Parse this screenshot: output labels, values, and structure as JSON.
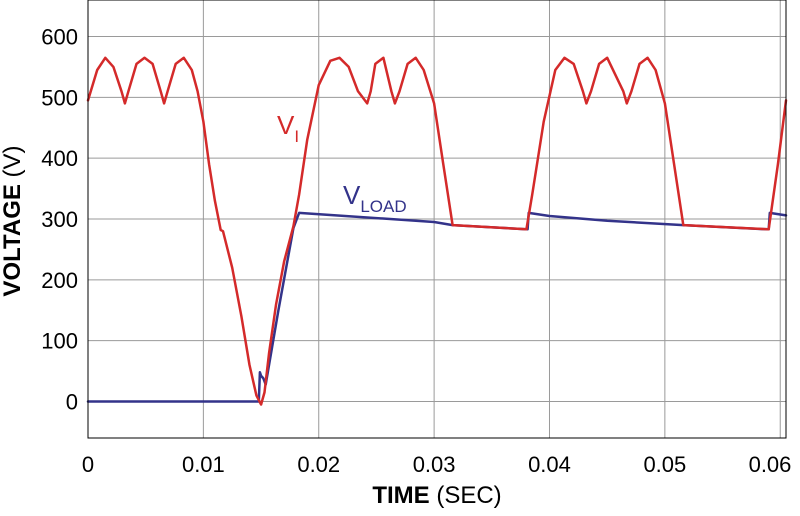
{
  "chart_data": {
    "type": "line",
    "title": "",
    "xlabel": {
      "bold": "TIME",
      "rest": " (SEC)"
    },
    "ylabel": {
      "bold": "VOLTAGE",
      "rest": " (V)"
    },
    "xlim": [
      0,
      0.0605
    ],
    "ylim": [
      -60,
      660
    ],
    "x_ticks": [
      {
        "value": 0,
        "label": "0"
      },
      {
        "value": 0.01,
        "label": "0.01"
      },
      {
        "value": 0.02,
        "label": "0.02"
      },
      {
        "value": 0.03,
        "label": "0.03"
      },
      {
        "value": 0.04,
        "label": "0.04"
      },
      {
        "value": 0.05,
        "label": "0.05"
      },
      {
        "value": 0.06,
        "label": "0.06"
      }
    ],
    "y_ticks": [
      {
        "value": 0,
        "label": "0"
      },
      {
        "value": 100,
        "label": "100"
      },
      {
        "value": 200,
        "label": "200"
      },
      {
        "value": 300,
        "label": "300"
      },
      {
        "value": 400,
        "label": "400"
      },
      {
        "value": 500,
        "label": "500"
      },
      {
        "value": 600,
        "label": "600"
      }
    ],
    "grid": true,
    "series": [
      {
        "name": "VI",
        "label_main": "V",
        "label_sub": "I",
        "color": "#d42a2a",
        "x": [
          0,
          0.0008,
          0.0015,
          0.0022,
          0.0029,
          0.0032,
          0.0035,
          0.0042,
          0.0049,
          0.0056,
          0.0063,
          0.0066,
          0.0069,
          0.0076,
          0.0083,
          0.009,
          0.0095,
          0.01,
          0.0105,
          0.011,
          0.0115,
          0.0117,
          0.0125,
          0.0133,
          0.014,
          0.0146,
          0.015,
          0.0153,
          0.0157,
          0.0163,
          0.017,
          0.0178,
          0.0183,
          0.019,
          0.02,
          0.021,
          0.0218,
          0.0226,
          0.0234,
          0.0242,
          0.0245,
          0.0249,
          0.0256,
          0.0263,
          0.0266,
          0.027,
          0.0277,
          0.0284,
          0.0291,
          0.03,
          0.0308,
          0.0316,
          0.038,
          0.0385,
          0.0395,
          0.0405,
          0.0413,
          0.0421,
          0.0429,
          0.0432,
          0.0436,
          0.0443,
          0.045,
          0.0464,
          0.0467,
          0.0471,
          0.0478,
          0.0485,
          0.0492,
          0.05,
          0.0508,
          0.0516,
          0.059,
          0.0598,
          0.0605
        ],
        "y": [
          495,
          545,
          565,
          550,
          510,
          490,
          510,
          555,
          565,
          555,
          510,
          490,
          510,
          555,
          565,
          545,
          510,
          460,
          390,
          330,
          282,
          280,
          220,
          140,
          60,
          10,
          -5,
          15,
          80,
          160,
          230,
          288,
          340,
          430,
          520,
          560,
          565,
          550,
          510,
          490,
          510,
          555,
          565,
          510,
          490,
          510,
          555,
          565,
          545,
          490,
          390,
          290,
          283,
          340,
          460,
          545,
          565,
          555,
          510,
          490,
          510,
          555,
          565,
          510,
          490,
          510,
          555,
          565,
          545,
          490,
          390,
          290,
          283,
          390,
          495
        ]
      },
      {
        "name": "VLOAD",
        "label_main": "V",
        "label_sub": "LOAD",
        "color": "#33338a",
        "x": [
          0,
          0.0148,
          0.0149,
          0.015,
          0.0152,
          0.0154,
          0.0165,
          0.0178,
          0.0183,
          0.03,
          0.0316,
          0.038,
          0.0381,
          0.0382,
          0.04,
          0.045,
          0.0516,
          0.0589,
          0.059,
          0.0591,
          0.0605
        ],
        "y": [
          0,
          0,
          48,
          42,
          38,
          28,
          150,
          285,
          310,
          295,
          290,
          283,
          283,
          310,
          305,
          297,
          290,
          283,
          283,
          310,
          306
        ]
      }
    ]
  }
}
